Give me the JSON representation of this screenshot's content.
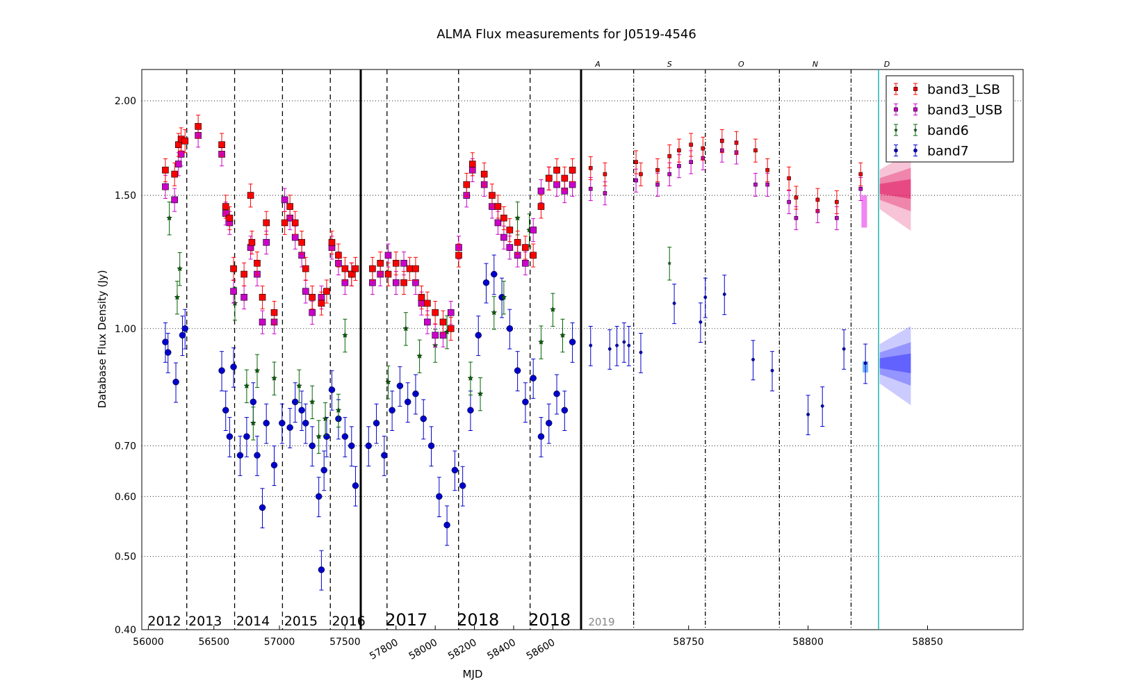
{
  "chart_data": {
    "type": "scatter",
    "title": "ALMA Flux measurements for J0519-4546",
    "xlabel": "MJD",
    "ylabel": "Database Flux Density (Jy)",
    "y_scale": "log",
    "ylim": [
      0.4,
      2.2
    ],
    "y_ticks": [
      "0.40",
      "0.50",
      "0.60",
      "0.70",
      "1.00",
      "1.50",
      "2.00"
    ],
    "grid": "horizontal dotted",
    "legend_placement": "top-right",
    "panels": [
      {
        "name": "2012-2016",
        "xlim": [
          55950,
          57620
        ],
        "x_ticks": [
          "56000",
          "56500",
          "57000",
          "57500"
        ],
        "year_labels": [
          "2012",
          "2013",
          "2014",
          "2015",
          "2016"
        ]
      },
      {
        "name": "2017-2018",
        "xlim": [
          57620,
          58744
        ],
        "x_ticks": [
          "57800",
          "58000",
          "58200",
          "58400",
          "58600"
        ],
        "year_labels": [
          "2017",
          "2018",
          "2018"
        ]
      },
      {
        "name": "2019",
        "xlim": [
          58705,
          58890
        ],
        "x_ticks": [
          "58750",
          "58800",
          "58850"
        ],
        "year_labels": [
          "2019"
        ],
        "month_labels": [
          "A",
          "S",
          "O",
          "N",
          "D"
        ],
        "today_mjd": 58829.5
      }
    ],
    "series": [
      {
        "name": "band3_LSB",
        "color": "#ff0000",
        "marker": "square",
        "x": [
          56130,
          56200,
          56230,
          56250,
          56280,
          56380,
          56560,
          56590,
          56620,
          56650,
          56730,
          56780,
          56790,
          56830,
          56870,
          56900,
          56960,
          57040,
          57080,
          57120,
          57170,
          57200,
          57250,
          57320,
          57360,
          57400,
          57450,
          57500,
          57550,
          57580,
          57680,
          57720,
          57760,
          57800,
          57840,
          57870,
          57900,
          57930,
          57960,
          58000,
          58040,
          58080,
          58120,
          58160,
          58190,
          58250,
          58290,
          58320,
          58350,
          58380,
          58420,
          58460,
          58500,
          58540,
          58580,
          58620,
          58660,
          58700,
          58730,
          58709,
          58715,
          58728,
          58737,
          58742,
          58746,
          58751,
          58756,
          58764,
          58770,
          58778,
          58783,
          58792,
          58795,
          58804,
          58812,
          58822
        ],
        "y": [
          1.62,
          1.6,
          1.75,
          1.78,
          1.77,
          1.85,
          1.75,
          1.45,
          1.4,
          1.2,
          1.18,
          1.5,
          1.3,
          1.22,
          1.1,
          1.38,
          1.05,
          1.38,
          1.45,
          1.38,
          1.3,
          1.2,
          1.1,
          1.08,
          1.12,
          1.3,
          1.25,
          1.2,
          1.18,
          1.2,
          1.2,
          1.22,
          1.18,
          1.22,
          1.15,
          1.2,
          1.2,
          1.1,
          1.08,
          1.05,
          1.02,
          1.0,
          1.25,
          1.55,
          1.65,
          1.6,
          1.5,
          1.45,
          1.4,
          1.35,
          1.3,
          1.28,
          1.25,
          1.45,
          1.58,
          1.62,
          1.58,
          1.62,
          1.6,
          1.63,
          1.6,
          1.66,
          1.62,
          1.69,
          1.72,
          1.75,
          1.73,
          1.77,
          1.76,
          1.72,
          1.62,
          1.58,
          1.49,
          1.48,
          1.47,
          1.6
        ]
      },
      {
        "name": "band3_USB",
        "color": "#cc00cc",
        "marker": "square",
        "x": [
          56130,
          56200,
          56230,
          56250,
          56380,
          56560,
          56590,
          56620,
          56650,
          56730,
          56780,
          56830,
          56870,
          56900,
          56960,
          57040,
          57080,
          57120,
          57170,
          57200,
          57250,
          57320,
          57400,
          57450,
          57500,
          57550,
          57680,
          57720,
          57760,
          57800,
          57840,
          57900,
          57930,
          57960,
          58000,
          58040,
          58080,
          58120,
          58160,
          58190,
          58250,
          58290,
          58320,
          58350,
          58380,
          58420,
          58460,
          58500,
          58540,
          58580,
          58620,
          58660,
          58700,
          58709,
          58715,
          58728,
          58737,
          58742,
          58746,
          58751,
          58756,
          58764,
          58770,
          58778,
          58783,
          58792,
          58795,
          58804,
          58812,
          58822
        ],
        "y": [
          1.54,
          1.48,
          1.65,
          1.7,
          1.8,
          1.7,
          1.42,
          1.38,
          1.12,
          1.1,
          1.28,
          1.18,
          1.02,
          1.3,
          1.02,
          1.48,
          1.4,
          1.32,
          1.25,
          1.12,
          1.05,
          1.1,
          1.28,
          1.22,
          1.15,
          1.18,
          1.15,
          1.18,
          1.25,
          1.15,
          1.22,
          1.15,
          1.08,
          1.02,
          0.98,
          0.98,
          1.05,
          1.28,
          1.5,
          1.62,
          1.55,
          1.45,
          1.38,
          1.32,
          1.28,
          1.25,
          1.22,
          1.35,
          1.52,
          1.58,
          1.55,
          1.52,
          1.55,
          1.53,
          1.51,
          1.57,
          1.55,
          1.6,
          1.64,
          1.66,
          1.68,
          1.72,
          1.71,
          1.55,
          1.55,
          1.47,
          1.4,
          1.43,
          1.4,
          1.53
        ]
      },
      {
        "name": "band6",
        "color": "#006400",
        "marker": "star",
        "x": [
          56160,
          56220,
          56240,
          56660,
          56750,
          56800,
          56830,
          56960,
          57150,
          57250,
          57300,
          57350,
          57450,
          57500,
          57760,
          57850,
          57920,
          58000,
          58060,
          58180,
          58230,
          58300,
          58350,
          58420,
          58480,
          58540,
          58600,
          58650,
          58742
        ],
        "y": [
          1.4,
          1.1,
          1.2,
          1.08,
          0.84,
          0.75,
          0.88,
          0.86,
          0.84,
          0.8,
          0.72,
          0.76,
          0.78,
          0.98,
          0.85,
          1.0,
          0.92,
          0.95,
          0.99,
          0.86,
          0.82,
          1.05,
          1.1,
          1.4,
          1.35,
          0.96,
          1.06,
          0.98,
          1.22
        ]
      },
      {
        "name": "band7",
        "color": "#0000cc",
        "marker": "circle",
        "x": [
          56130,
          56150,
          56210,
          56260,
          56280,
          56560,
          56590,
          56620,
          56650,
          56700,
          56750,
          56800,
          56830,
          56870,
          56900,
          56960,
          57020,
          57080,
          57120,
          57170,
          57200,
          57250,
          57300,
          57320,
          57340,
          57360,
          57400,
          57450,
          57500,
          57550,
          57580,
          57660,
          57700,
          57740,
          57780,
          57820,
          57860,
          57900,
          57940,
          57980,
          58020,
          58060,
          58100,
          58140,
          58180,
          58220,
          58260,
          58300,
          58340,
          58380,
          58420,
          58460,
          58500,
          58540,
          58580,
          58620,
          58660,
          58700,
          58730,
          58709,
          58717,
          58720,
          58723,
          58725,
          58744,
          58755,
          58757,
          58765,
          58777,
          58785,
          58800,
          58806,
          58815,
          58824
        ],
        "y": [
          0.96,
          0.93,
          0.85,
          0.98,
          1.0,
          0.88,
          0.78,
          0.72,
          0.89,
          0.68,
          0.72,
          0.8,
          0.68,
          0.58,
          0.75,
          0.66,
          0.75,
          0.74,
          0.8,
          0.78,
          0.75,
          0.7,
          0.6,
          0.48,
          0.65,
          0.72,
          0.83,
          0.76,
          0.72,
          0.7,
          0.62,
          0.7,
          0.75,
          0.68,
          0.78,
          0.84,
          0.8,
          0.82,
          0.76,
          0.7,
          0.6,
          0.55,
          0.65,
          0.62,
          0.78,
          0.98,
          1.15,
          1.18,
          1.1,
          1.0,
          0.88,
          0.8,
          0.86,
          0.72,
          0.75,
          0.82,
          0.78,
          0.96,
          0.93,
          0.95,
          0.94,
          0.95,
          0.96,
          0.95,
          1.08,
          1.02,
          1.1,
          1.11,
          0.91,
          0.88,
          0.77,
          0.79,
          0.94,
          0.9
        ]
      }
    ],
    "forecast": {
      "mjd_start": 58830,
      "mjd_end": 58843,
      "band3_center": 1.53,
      "band3_spread_start": 0.06,
      "band3_spread_end": 0.12,
      "band7_center": 0.9,
      "band7_spread_start": 0.06,
      "band7_spread_end": 0.12
    }
  },
  "colors": {
    "band3_LSB": "#ff0000",
    "band3_USB": "#cc00cc",
    "band6": "#006400",
    "band7": "#0000cc",
    "band3_forecast": "#e0105a",
    "band7_forecast": "#3030ff",
    "today_line": "#20b2aa"
  }
}
